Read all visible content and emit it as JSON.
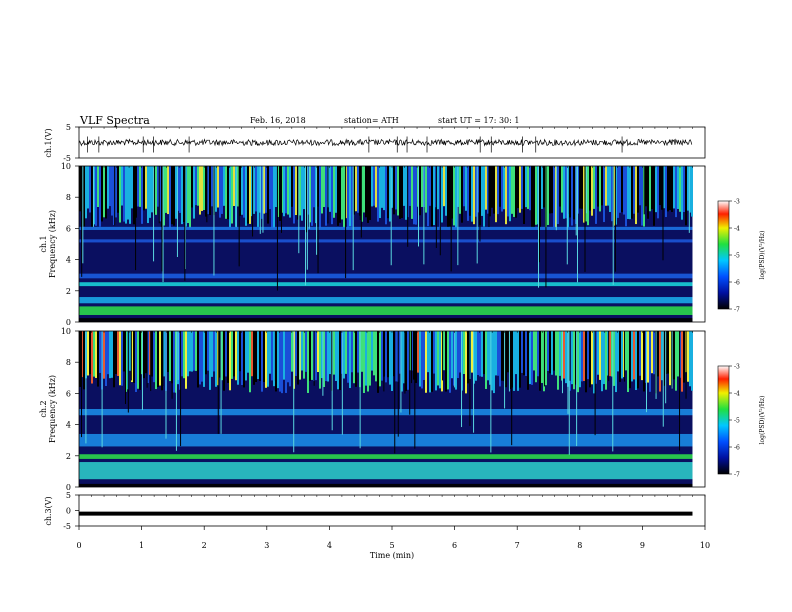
{
  "header": {
    "title": "VLF  Spectra",
    "date": "Feb. 16, 2018",
    "station": "station= ATH",
    "start": "start  UT  =   17: 30: 1"
  },
  "chart_data": [
    {
      "type": "line",
      "id": "ch1-waveform",
      "ylabel": "ch.1(V)",
      "ylim": [
        -5,
        5
      ],
      "yticks": [
        5,
        -5
      ],
      "xlim": [
        0,
        10
      ],
      "data_end_min": 9.8,
      "level_v": 0
    },
    {
      "type": "heatmap",
      "id": "ch1-spectrogram",
      "ylabel_channel": "ch.1",
      "ylabel": "Frequency  (kHz)",
      "ylim": [
        0,
        10
      ],
      "yticks": [
        0,
        2,
        4,
        6,
        8,
        10
      ],
      "xlim": [
        0,
        10
      ],
      "data_end_min": 9.8,
      "colorbar": {
        "label": "log(PSD)(V²/Hz)",
        "range": [
          -7,
          -3
        ],
        "ticks": [
          -3,
          -4,
          -5,
          -6,
          -7
        ]
      },
      "noise_bands_khz": [
        [
          0.0,
          0.25,
          "#000000"
        ],
        [
          0.45,
          1.0,
          "#2bd84b"
        ],
        [
          1.2,
          1.6,
          "#19a8e8"
        ],
        [
          2.3,
          2.55,
          "#18d0d8"
        ],
        [
          2.8,
          3.1,
          "#1a5ce0"
        ],
        [
          5.1,
          5.3,
          "#1b55d8"
        ],
        [
          5.9,
          6.1,
          "#1b73e6"
        ]
      ]
    },
    {
      "type": "heatmap",
      "id": "ch2-spectrogram",
      "ylabel_channel": "ch.2",
      "ylabel": "Frequency  (kHz)",
      "ylim": [
        0,
        10
      ],
      "yticks": [
        0,
        2,
        4,
        6,
        8,
        10
      ],
      "xlim": [
        0,
        10
      ],
      "data_end_min": 9.8,
      "colorbar": {
        "label": "log(PSD)(V²/Hz)",
        "range": [
          -7,
          -3
        ],
        "ticks": [
          -3,
          -4,
          -5,
          -6,
          -7
        ]
      },
      "noise_bands_khz": [
        [
          0.0,
          0.2,
          "#000000"
        ],
        [
          0.5,
          1.6,
          "#2bc8c8"
        ],
        [
          1.8,
          2.1,
          "#2bd84b"
        ],
        [
          2.6,
          3.4,
          "#1a8ae6"
        ],
        [
          4.6,
          5.0,
          "#1a8ae6"
        ]
      ]
    },
    {
      "type": "line",
      "id": "ch3-waveform",
      "ylabel": "ch.3(V)",
      "ylim": [
        -5,
        5
      ],
      "yticks": [
        5,
        0,
        -5
      ],
      "xlim": [
        0,
        10
      ],
      "data_end_min": 9.8,
      "level_v": -1
    }
  ],
  "x_axis": {
    "label": "Time  (min)",
    "ticks": [
      "0",
      "1",
      "2",
      "3",
      "4",
      "5",
      "6",
      "7",
      "8",
      "9",
      "10"
    ]
  }
}
